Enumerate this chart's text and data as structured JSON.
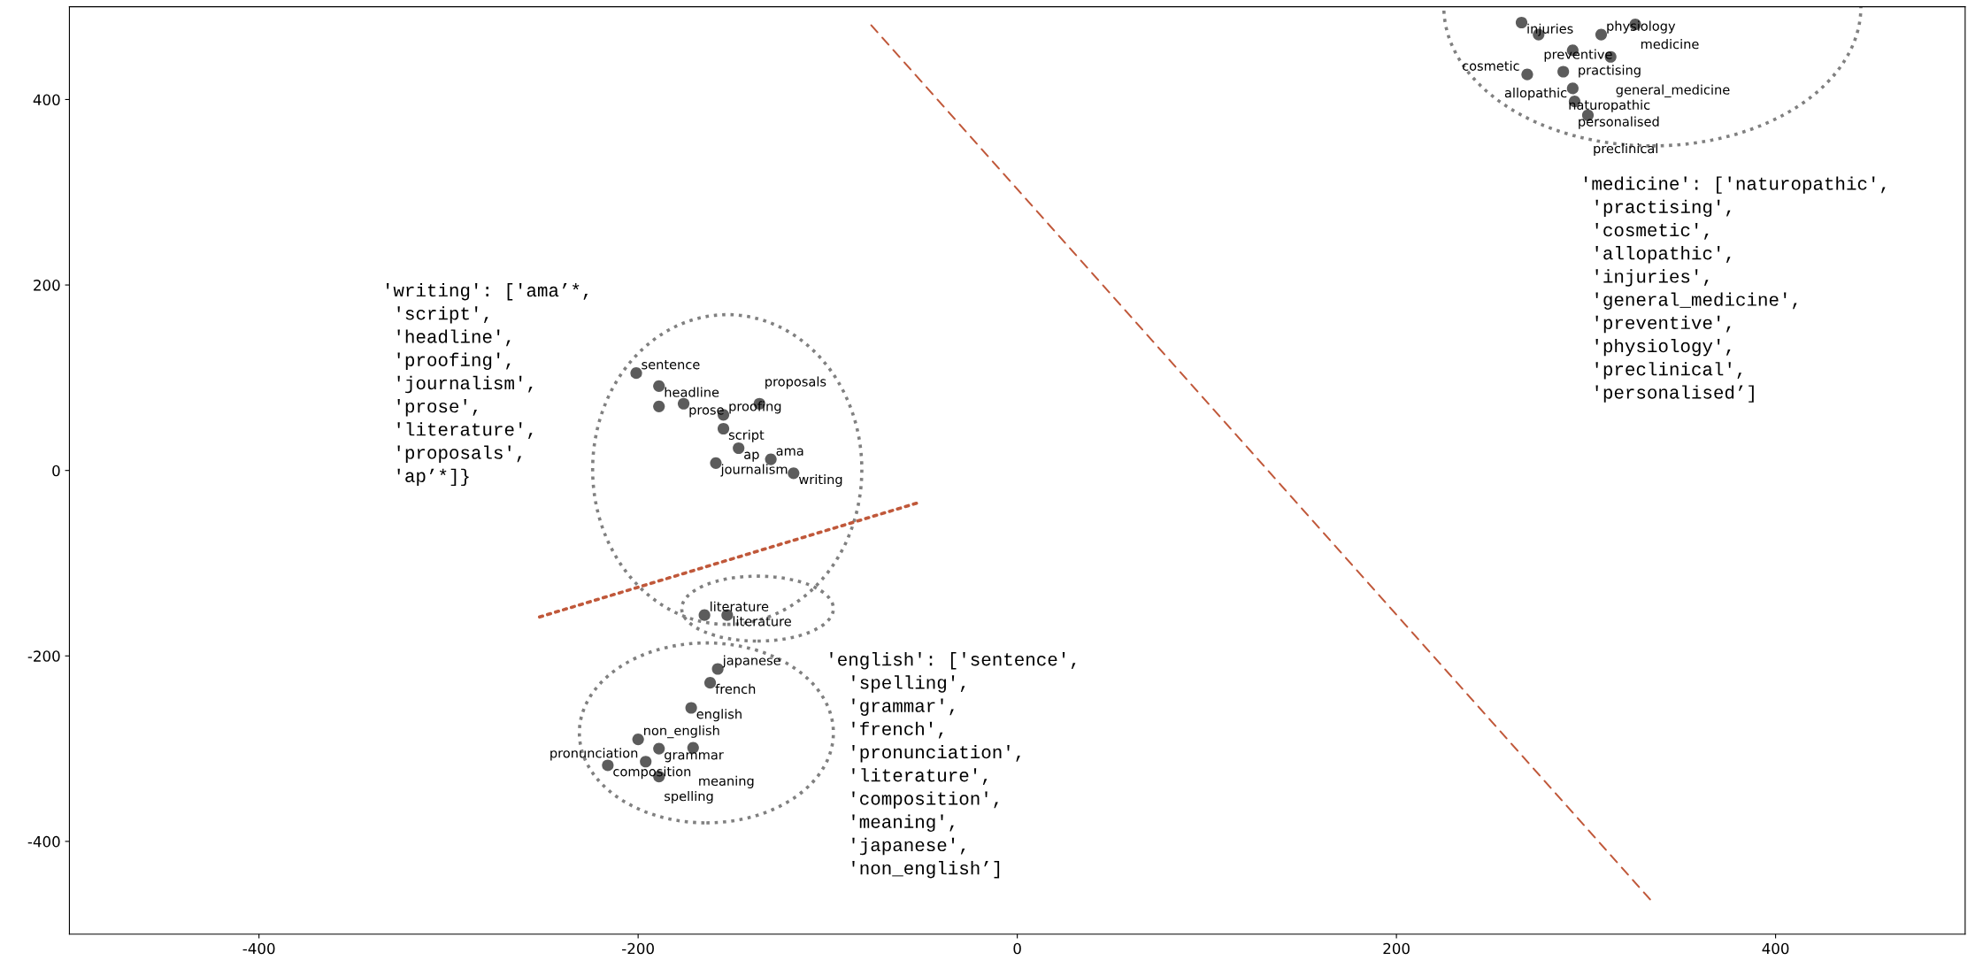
{
  "chart_data": {
    "type": "scatter",
    "xlim": [
      -500,
      500
    ],
    "ylim": [
      -500,
      500
    ],
    "xticks": [
      -400,
      -200,
      0,
      200,
      400
    ],
    "yticks": [
      -400,
      -200,
      0,
      200,
      400
    ],
    "grid": false,
    "legend": false,
    "series": [
      {
        "marker": "circle",
        "color": "#404040",
        "x": [
          -201,
          -189,
          -189,
          -176,
          -155,
          -155,
          -136,
          -147,
          -159,
          -130,
          -118,
          -165,
          -153,
          -158,
          -162,
          -172,
          -200,
          -189,
          -171,
          -196,
          -216,
          -189,
          266,
          275,
          308,
          326,
          293,
          313,
          288,
          269,
          293,
          294,
          301
        ],
        "values": [
          105,
          91,
          69,
          72,
          60,
          45,
          72,
          24,
          8,
          12,
          -3,
          -156,
          -156,
          -214,
          -229,
          -256,
          -290,
          -300,
          -299,
          -314,
          -318,
          -330,
          483,
          470,
          470,
          481,
          453,
          446,
          430,
          427,
          412,
          398,
          383
        ]
      },
      {
        "type": "line",
        "color": "#c0583a",
        "line_style": "dotted",
        "x": [
          -252,
          -51
        ],
        "values": [
          -158,
          -34
        ]
      },
      {
        "type": "line",
        "color": "#c0583a",
        "line_style": "dashed",
        "x": [
          -77,
          334
        ],
        "values": [
          480,
          -463
        ]
      }
    ],
    "annotations": [
      {
        "text": "sentence",
        "x": -201,
        "y": 105
      },
      {
        "text": "headline",
        "x": -189,
        "y": 91
      },
      {
        "text": "prose",
        "x": -176,
        "y": 72
      },
      {
        "text": "proofing",
        "x": -155,
        "y": 60
      },
      {
        "text": "script",
        "x": -155,
        "y": 45
      },
      {
        "text": "proposals",
        "x": -136,
        "y": 72
      },
      {
        "text": "ap",
        "x": -147,
        "y": 24
      },
      {
        "text": "journalism",
        "x": -159,
        "y": 8
      },
      {
        "text": "ama",
        "x": -130,
        "y": 12
      },
      {
        "text": "writing",
        "x": -118,
        "y": -3
      },
      {
        "text": "literature",
        "x": -165,
        "y": -156
      },
      {
        "text": "literature",
        "x": -153,
        "y": -156
      },
      {
        "text": "japanese",
        "x": -158,
        "y": -214
      },
      {
        "text": "french",
        "x": -162,
        "y": -229
      },
      {
        "text": "english",
        "x": -172,
        "y": -256
      },
      {
        "text": "non_english",
        "x": -200,
        "y": -290
      },
      {
        "text": "grammar",
        "x": -189,
        "y": -300
      },
      {
        "text": "meaning",
        "x": -171,
        "y": -299
      },
      {
        "text": "pronunciation",
        "x": -196,
        "y": -314
      },
      {
        "text": "composition",
        "x": -216,
        "y": -318
      },
      {
        "text": "spelling",
        "x": -189,
        "y": -330
      },
      {
        "text": "injuries",
        "x": 266,
        "y": 483
      },
      {
        "text": "preventive",
        "x": 275,
        "y": 470
      },
      {
        "text": "physiology",
        "x": 308,
        "y": 470
      },
      {
        "text": "medicine",
        "x": 326,
        "y": 481
      },
      {
        "text": "practising",
        "x": 293,
        "y": 453
      },
      {
        "text": "general_medicine",
        "x": 313,
        "y": 446
      },
      {
        "text": "naturopathic",
        "x": 288,
        "y": 430
      },
      {
        "text": "cosmetic",
        "x": 269,
        "y": 427
      },
      {
        "text": "personalised",
        "x": 293,
        "y": 412
      },
      {
        "text": "allopathic",
        "x": 294,
        "y": 398
      },
      {
        "text": "preclinical",
        "x": 301,
        "y": 383
      },
      "'writing': ['ama’*,\n 'script',\n 'headline',\n 'proofing',\n 'journalism',\n 'prose',\n 'literature',\n 'proposals',\n 'ap’*]}",
      "'english': ['sentence',\n  'spelling',\n  'grammar',\n  'french',\n  'pronunciation',\n  'literature',\n  'composition',\n  'meaning',\n  'japanese',\n  'non_english’]",
      "'medicine': ['naturopathic',\n 'practising',\n 'cosmetic',\n 'allopathic',\n 'injuries',\n 'general_medicine',\n 'preventive',\n 'physiology',\n 'preclinical',\n 'personalised’]"
    ]
  }
}
